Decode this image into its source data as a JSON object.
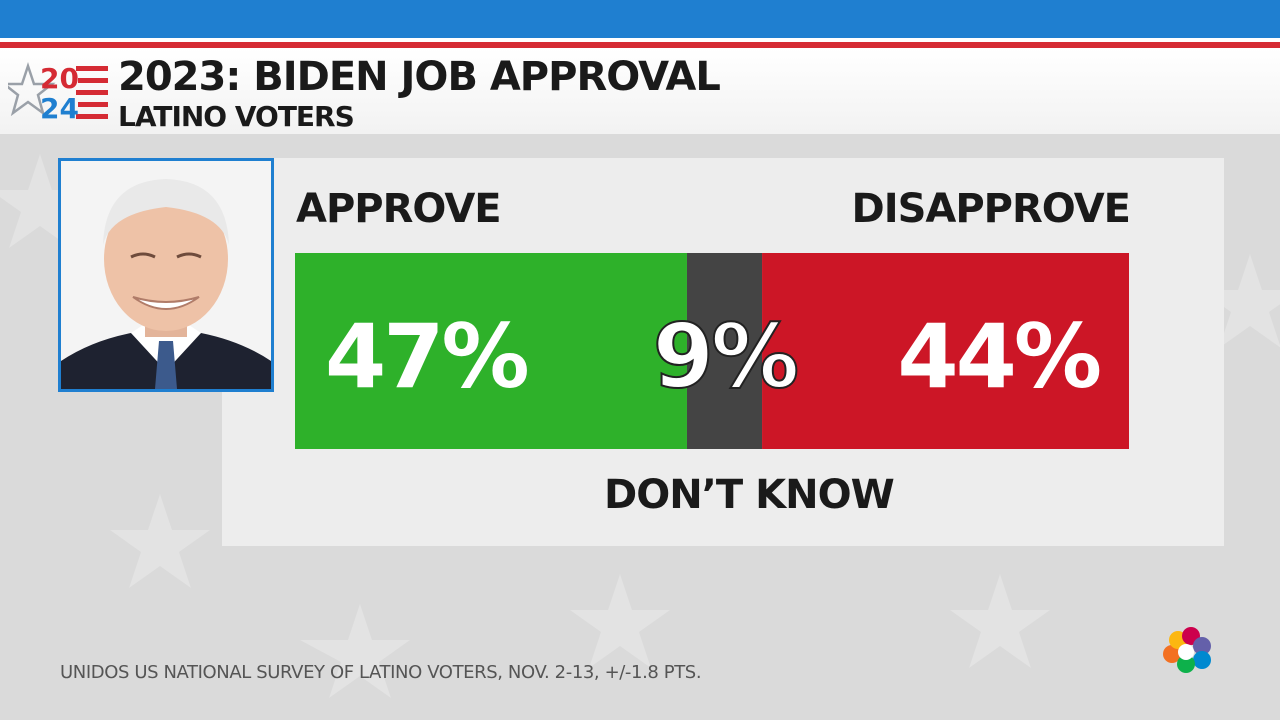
{
  "header": {
    "logo_text_top": "20",
    "logo_text_bottom": "24",
    "title": "2023: BIDEN JOB APPROVAL",
    "subtitle": "LATINO VOTERS"
  },
  "labels": {
    "approve": "APPROVE",
    "disapprove": "DISAPPROVE",
    "dont_know": "DON’T KNOW"
  },
  "colors": {
    "approve": "#2eb12a",
    "dont_know": "#444444",
    "disapprove": "#cc1626",
    "brand_blue": "#1f7fd0",
    "brand_red": "#d52b34"
  },
  "chart_data": {
    "type": "bar",
    "orientation": "horizontal-stacked",
    "categories": [
      "APPROVE",
      "DON’T KNOW",
      "DISAPPROVE"
    ],
    "values": [
      47,
      9,
      44
    ],
    "value_labels": [
      "47%",
      "9%",
      "44%"
    ],
    "xlim": [
      0,
      100
    ]
  },
  "footer": {
    "source": "UNIDOS US NATIONAL SURVEY OF LATINO VOTERS, NOV. 2-13, +/-1.8 PTS."
  }
}
